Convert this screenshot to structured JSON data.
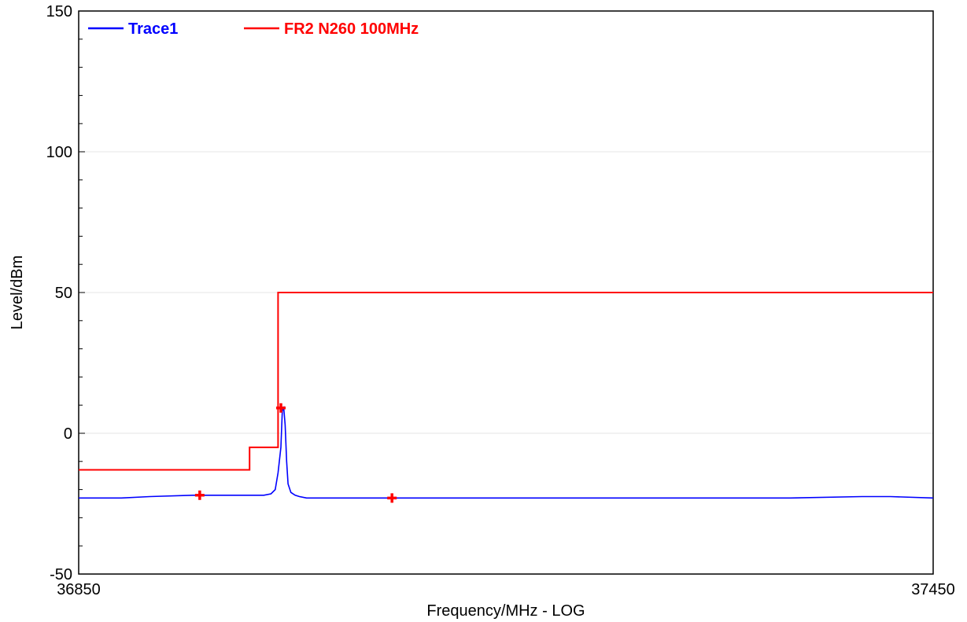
{
  "chart_data": {
    "type": "line",
    "title": "",
    "xlabel": "Frequency/MHz - LOG",
    "ylabel": "Level/dBm",
    "xlim": [
      36850,
      37450
    ],
    "ylim": [
      -50,
      150
    ],
    "x_tick_labels": [
      "36850",
      "37450"
    ],
    "y_ticks": [
      -50,
      0,
      50,
      100,
      150
    ],
    "y_tick_labels": [
      "-50",
      "0",
      "50",
      "100",
      "150"
    ],
    "grid": true,
    "legend_placement": "top-left",
    "series": [
      {
        "name": "Trace1",
        "color": "#0000ff",
        "kind": "trace",
        "x": [
          36850,
          36880,
          36900,
          36930,
          36960,
          36980,
          36985,
          36988,
          36990,
          36992,
          36993,
          36994,
          36995,
          36996,
          36997,
          36999,
          37002,
          37005,
          37010,
          37040,
          37070,
          37100,
          37150,
          37200,
          37250,
          37300,
          37350,
          37400,
          37420,
          37450
        ],
        "y": [
          -23,
          -23,
          -22.5,
          -22,
          -22,
          -22,
          -21.5,
          -20,
          -14,
          -5,
          8,
          9,
          3,
          -10,
          -18,
          -21,
          -22,
          -22.5,
          -23,
          -23,
          -23,
          -23,
          -23,
          -23,
          -23,
          -23,
          -23,
          -22.5,
          -22.5,
          -23
        ]
      },
      {
        "name": "FR2 N260 100MHz",
        "color": "#ff0000",
        "kind": "step-limit",
        "x": [
          36850,
          36970,
          36970,
          36990,
          36990,
          37450
        ],
        "y": [
          -13,
          -13,
          -5,
          -5,
          50,
          50
        ]
      }
    ],
    "markers": [
      {
        "x": 36935,
        "y": -22,
        "color": "#ff0000"
      },
      {
        "x": 36992,
        "y": 9,
        "color": "#ff0000"
      },
      {
        "x": 37070,
        "y": -23,
        "color": "#ff0000"
      }
    ]
  }
}
